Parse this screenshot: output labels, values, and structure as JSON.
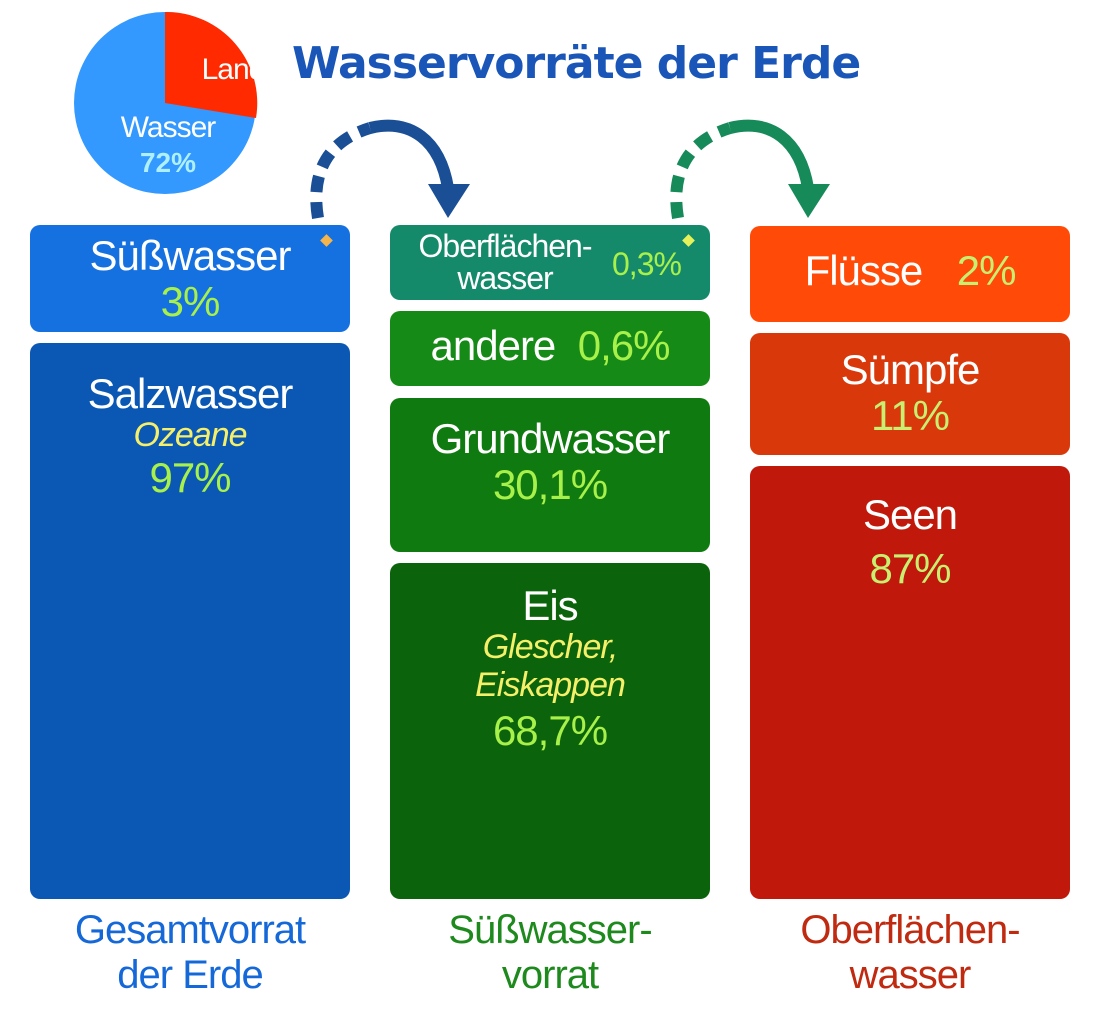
{
  "title": "Wasservorräte der Erde",
  "pie": {
    "land_label": "Land",
    "water_label": "Wasser",
    "water_value": "72%",
    "colors": {
      "water": "#3399ff",
      "land": "#ff2a00",
      "water_value": "#aef0ff"
    }
  },
  "columns": {
    "total": {
      "footer": [
        "Gesamtvorrat",
        "der Erde"
      ],
      "color": "#1568d8",
      "boxes": [
        {
          "label": "Süßwasser",
          "value": "3%"
        },
        {
          "label": "Salzwasser",
          "sub": "Ozeane",
          "value": "97%"
        }
      ]
    },
    "fresh": {
      "footer": [
        "Süßwasser-",
        "vorrat"
      ],
      "color": "#1e8a1e",
      "boxes": [
        {
          "label": [
            "Oberflächen-",
            "wasser"
          ],
          "value": "0,3%"
        },
        {
          "label": "andere",
          "value": "0,6%"
        },
        {
          "label": "Grundwasser",
          "value": "30,1%"
        },
        {
          "label": "Eis",
          "sub": [
            "Glescher,",
            "Eiskappen"
          ],
          "value": "68,7%"
        }
      ]
    },
    "surface": {
      "footer": [
        "Oberflächen-",
        "wasser"
      ],
      "color": "#c02a10",
      "boxes": [
        {
          "label": "Flüsse",
          "value": "2%"
        },
        {
          "label": "Sümpfe",
          "value": "11%"
        },
        {
          "label": "Seen",
          "value": "87%"
        }
      ]
    }
  },
  "arrow_colors": {
    "first": "#1a4f96",
    "second": "#178a5a"
  },
  "diamond_colors": {
    "first": "#f5b54a",
    "second": "#e7f25a"
  }
}
